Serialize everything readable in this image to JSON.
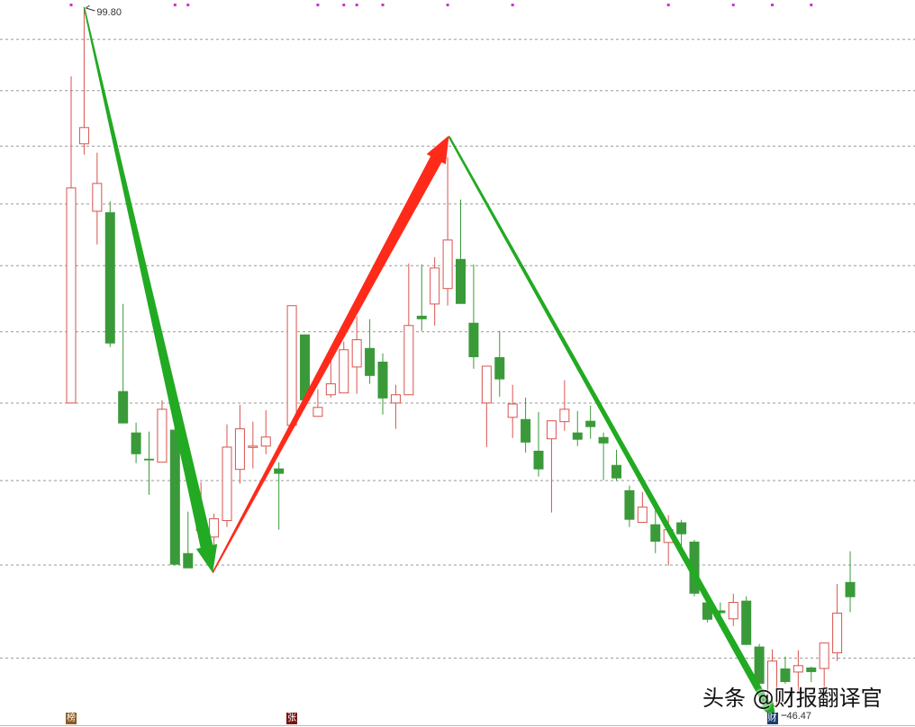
{
  "chart_data": {
    "type": "candlestick",
    "y_scale": "log",
    "ylim": [
      45.9,
      100.2
    ],
    "grid": true,
    "grid_levels": [
      49.43,
      54.65,
      59.87,
      65.09,
      70.3,
      75.5,
      80.7,
      85.9,
      91.2,
      96.4
    ],
    "colors": {
      "up": "#d9534f",
      "down": "#3a9a3a",
      "grid": "#999999",
      "marker_dot": "#cc33cc"
    },
    "candles_ohlc": [
      [
        65.1,
        92.63,
        65.1,
        82.11
      ],
      [
        86.12,
        99.8,
        85.13,
        87.64
      ],
      [
        80.07,
        85.3,
        77.25,
        82.51
      ],
      [
        79.99,
        80.93,
        69.15,
        69.42
      ],
      [
        65.94,
        72.45,
        63.68,
        63.68
      ],
      [
        63.06,
        63.74,
        61.01,
        61.6
      ],
      [
        61.3,
        63.12,
        58.96,
        61.19
      ],
      [
        61.07,
        65.29,
        61.07,
        64.66
      ],
      [
        63.25,
        63.74,
        54.67,
        54.67
      ],
      [
        55.36,
        57.9,
        54.46,
        54.46
      ],
      [
        56.72,
        59.78,
        56.16,
        57.39
      ],
      [
        56.33,
        57.78,
        54.83,
        57.45
      ],
      [
        57.34,
        63.62,
        56.94,
        62.07
      ],
      [
        60.6,
        64.97,
        59.67,
        63.31
      ],
      [
        62.07,
        63.8,
        60.66,
        62.14
      ],
      [
        62.14,
        64.6,
        61.6,
        62.75
      ],
      [
        60.66,
        61.07,
        56.78,
        60.31
      ],
      [
        63.55,
        72.31,
        63.55,
        72.31
      ],
      [
        70.1,
        70.1,
        65.29,
        65.29
      ],
      [
        64.17,
        66.07,
        64.17,
        64.79
      ],
      [
        65.68,
        68.2,
        65.48,
        66.46
      ],
      [
        65.81,
        69.56,
        65.81,
        68.95
      ],
      [
        67.68,
        71.46,
        65.75,
        69.7
      ],
      [
        69.08,
        71.26,
        66.46,
        67.03
      ],
      [
        68.07,
        68.68,
        64.29,
        65.42
      ],
      [
        65.1,
        66.39,
        63.31,
        65.68
      ],
      [
        65.68,
        75.68,
        65.68,
        70.78
      ],
      [
        71.53,
        75.61,
        70.37,
        71.26
      ],
      [
        72.44,
        76.2,
        70.78,
        75.31
      ],
      [
        73.66,
        84.88,
        72.31,
        77.62
      ],
      [
        76.05,
        81.09,
        72.45,
        72.45
      ],
      [
        70.99,
        75.61,
        67.55,
        68.4
      ],
      [
        65.1,
        67.74,
        62.07,
        67.74
      ],
      [
        68.4,
        70.37,
        65.55,
        66.78
      ],
      [
        64.1,
        66.39,
        62.69,
        65.03
      ],
      [
        63.98,
        65.48,
        61.71,
        62.38
      ],
      [
        61.83,
        64.48,
        60.13,
        60.6
      ],
      [
        62.63,
        63.86,
        57.84,
        63.86
      ],
      [
        63.8,
        66.72,
        63.18,
        64.66
      ],
      [
        63.06,
        64.54,
        62.14,
        62.57
      ],
      [
        63.86,
        64.91,
        62.63,
        63.43
      ],
      [
        62.75,
        63.06,
        59.9,
        62.32
      ],
      [
        60.89,
        61.89,
        59.84,
        60.01
      ],
      [
        59.25,
        59.55,
        56.94,
        57.39
      ],
      [
        57.23,
        59.14,
        57.23,
        58.18
      ],
      [
        57.11,
        58.07,
        55.36,
        56.05
      ],
      [
        56.0,
        57.67,
        54.62,
        56.78
      ],
      [
        57.23,
        57.39,
        55.31,
        56.5
      ],
      [
        56.05,
        56.16,
        52.84,
        52.99
      ],
      [
        52.49,
        52.74,
        51.37,
        51.52
      ],
      [
        52.04,
        52.49,
        51.12,
        51.89
      ],
      [
        51.57,
        52.99,
        51.17,
        52.49
      ],
      [
        52.59,
        52.84,
        50.14,
        50.14
      ],
      [
        50.05,
        50.19,
        47.85,
        48.08
      ],
      [
        46.94,
        49.9,
        46.47,
        49.27
      ],
      [
        48.88,
        49.51,
        48.08,
        48.17
      ],
      [
        48.69,
        49.85,
        47.62,
        49.03
      ],
      [
        48.93,
        48.98,
        48.17,
        48.69
      ],
      [
        48.88,
        50.24,
        47.62,
        50.24
      ],
      [
        49.71,
        53.55,
        49.27,
        51.89
      ],
      [
        53.66,
        55.47,
        51.94,
        52.79
      ]
    ],
    "high_label": {
      "index": 1,
      "price": 99.8,
      "text": "99.80"
    },
    "low_label": {
      "index": 54,
      "price": 46.47,
      "text": "46.47"
    },
    "top_marker_indices": [
      0,
      8,
      9,
      19,
      21,
      22,
      24,
      29,
      34,
      46,
      51,
      54,
      57
    ],
    "event_badges": [
      {
        "index": 0,
        "text": "榜",
        "color": "#8a5a1e"
      },
      {
        "index": 17,
        "text": "张",
        "color": "#7a1414"
      },
      {
        "index": 54,
        "text": "财",
        "color": "#1c3d6e"
      }
    ],
    "annotations": [
      {
        "type": "arrow",
        "color": "#22aa22",
        "from": {
          "index": 1,
          "price": 99.8
        },
        "to": {
          "index": 10.9,
          "price": 54.2
        }
      },
      {
        "type": "arrow",
        "color": "#ff2a1a",
        "from": {
          "index": 10.9,
          "price": 54.2
        },
        "to": {
          "index": 29.1,
          "price": 86.9
        }
      },
      {
        "type": "arrow",
        "color": "#22aa22",
        "from": {
          "index": 29.1,
          "price": 86.8
        },
        "to": {
          "index": 54.3,
          "price": 46.2
        }
      }
    ]
  },
  "watermark": "头条 @财报翻译官"
}
